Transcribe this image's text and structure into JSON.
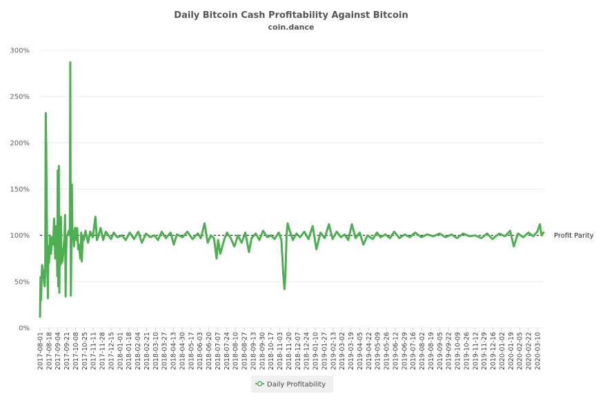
{
  "chart_data": {
    "type": "line",
    "title": "Daily Bitcoin Cash Profitability Against Bitcoin",
    "subtitle": "coin.dance",
    "y_unit": "%",
    "ylim": [
      0,
      300
    ],
    "yticks": [
      0,
      50,
      100,
      150,
      200,
      250,
      300
    ],
    "ytick_labels": [
      "0%",
      "50%",
      "100%",
      "150%",
      "200%",
      "250%",
      "300%"
    ],
    "xlim": [
      "2017-08-01",
      "2020-03-22"
    ],
    "xtick_labels": [
      "2017-08-01",
      "2017-08-18",
      "2017-09-04",
      "2017-09-21",
      "2017-10-08",
      "2017-10-25",
      "2017-11-11",
      "2017-11-28",
      "2017-12-15",
      "2018-01-01",
      "2018-01-18",
      "2018-02-04",
      "2018-02-21",
      "2018-03-10",
      "2018-03-27",
      "2018-04-13",
      "2018-04-30",
      "2018-05-17",
      "2018-06-03",
      "2018-06-20",
      "2018-07-07",
      "2018-07-24",
      "2018-08-10",
      "2018-08-27",
      "2018-09-13",
      "2018-09-30",
      "2018-10-17",
      "2018-11-03",
      "2018-11-20",
      "2018-12-07",
      "2018-12-24",
      "2019-01-10",
      "2019-01-27",
      "2019-02-13",
      "2019-03-02",
      "2019-03-19",
      "2019-04-05",
      "2019-04-22",
      "2019-05-09",
      "2019-05-26",
      "2019-06-12",
      "2019-06-29",
      "2019-07-16",
      "2019-08-02",
      "2019-08-19",
      "2019-09-05",
      "2019-09-22",
      "2019-10-09",
      "2019-10-26",
      "2019-11-12",
      "2019-11-29",
      "2019-12-16",
      "2020-01-02",
      "2020-01-19",
      "2020-02-05",
      "2020-02-22",
      "2020-03-10"
    ],
    "grid": true,
    "legend_placement": "bottom-center",
    "line_color": "#4caf50",
    "reference_line": {
      "value": 100,
      "label": "Profit Parity",
      "color": "#000000",
      "style": "dashed"
    },
    "series": [
      {
        "name": "Daily Profitability",
        "color": "#4caf50",
        "points": [
          [
            "2017-08-01",
            12
          ],
          [
            "2017-08-02",
            55
          ],
          [
            "2017-08-03",
            30
          ],
          [
            "2017-08-04",
            52
          ],
          [
            "2017-08-05",
            68
          ],
          [
            "2017-08-07",
            62
          ],
          [
            "2017-08-09",
            48
          ],
          [
            "2017-08-10",
            45
          ],
          [
            "2017-08-11",
            60
          ],
          [
            "2017-08-12",
            232
          ],
          [
            "2017-08-13",
            190
          ],
          [
            "2017-08-14",
            125
          ],
          [
            "2017-08-15",
            70
          ],
          [
            "2017-08-16",
            32
          ],
          [
            "2017-08-17",
            88
          ],
          [
            "2017-08-18",
            70
          ],
          [
            "2017-08-19",
            78
          ],
          [
            "2017-08-20",
            100
          ],
          [
            "2017-08-21",
            88
          ],
          [
            "2017-08-22",
            80
          ],
          [
            "2017-08-24",
            98
          ],
          [
            "2017-08-26",
            90
          ],
          [
            "2017-08-28",
            118
          ],
          [
            "2017-08-29",
            100
          ],
          [
            "2017-08-30",
            75
          ],
          [
            "2017-08-31",
            110
          ],
          [
            "2017-09-01",
            95
          ],
          [
            "2017-09-02",
            105
          ],
          [
            "2017-09-03",
            56
          ],
          [
            "2017-09-04",
            170
          ],
          [
            "2017-09-05",
            45
          ],
          [
            "2017-09-06",
            175
          ],
          [
            "2017-09-07",
            38
          ],
          [
            "2017-09-08",
            100
          ],
          [
            "2017-09-09",
            68
          ],
          [
            "2017-09-10",
            120
          ],
          [
            "2017-09-11",
            70
          ],
          [
            "2017-09-12",
            85
          ],
          [
            "2017-09-13",
            72
          ],
          [
            "2017-09-15",
            85
          ],
          [
            "2017-09-17",
            100
          ],
          [
            "2017-09-18",
            122
          ],
          [
            "2017-09-19",
            34
          ],
          [
            "2017-09-20",
            80
          ],
          [
            "2017-09-21",
            100
          ],
          [
            "2017-09-23",
            100
          ],
          [
            "2017-09-25",
            105
          ],
          [
            "2017-09-27",
            100
          ],
          [
            "2017-09-28",
            287
          ],
          [
            "2017-09-29",
            35
          ],
          [
            "2017-09-30",
            80
          ],
          [
            "2017-10-01",
            155
          ],
          [
            "2017-10-02",
            100
          ],
          [
            "2017-10-03",
            105
          ],
          [
            "2017-10-05",
            88
          ],
          [
            "2017-10-07",
            108
          ],
          [
            "2017-10-09",
            95
          ],
          [
            "2017-10-11",
            108
          ],
          [
            "2017-10-13",
            85
          ],
          [
            "2017-10-15",
            90
          ],
          [
            "2017-10-17",
            75
          ],
          [
            "2017-10-19",
            103
          ],
          [
            "2017-10-20",
            72
          ],
          [
            "2017-10-22",
            100
          ],
          [
            "2017-10-24",
            95
          ],
          [
            "2017-10-27",
            105
          ],
          [
            "2017-11-01",
            92
          ],
          [
            "2017-11-05",
            104
          ],
          [
            "2017-11-10",
            98
          ],
          [
            "2017-11-15",
            120
          ],
          [
            "2017-11-18",
            95
          ],
          [
            "2017-11-22",
            102
          ],
          [
            "2017-11-25",
            108
          ],
          [
            "2017-11-30",
            95
          ],
          [
            "2017-12-05",
            104
          ],
          [
            "2017-12-10",
            100
          ],
          [
            "2017-12-15",
            96
          ],
          [
            "2017-12-20",
            103
          ],
          [
            "2017-12-27",
            98
          ],
          [
            "2018-01-05",
            100
          ],
          [
            "2018-01-12",
            95
          ],
          [
            "2018-01-20",
            103
          ],
          [
            "2018-01-28",
            96
          ],
          [
            "2018-02-05",
            104
          ],
          [
            "2018-02-12",
            92
          ],
          [
            "2018-02-20",
            102
          ],
          [
            "2018-02-28",
            98
          ],
          [
            "2018-03-08",
            100
          ],
          [
            "2018-03-15",
            95
          ],
          [
            "2018-03-22",
            104
          ],
          [
            "2018-03-30",
            97
          ],
          [
            "2018-04-08",
            103
          ],
          [
            "2018-04-14",
            90
          ],
          [
            "2018-04-20",
            101
          ],
          [
            "2018-05-01",
            98
          ],
          [
            "2018-05-10",
            104
          ],
          [
            "2018-05-20",
            96
          ],
          [
            "2018-05-30",
            102
          ],
          [
            "2018-06-05",
            97
          ],
          [
            "2018-06-12",
            113
          ],
          [
            "2018-06-18",
            92
          ],
          [
            "2018-06-24",
            100
          ],
          [
            "2018-06-30",
            97
          ],
          [
            "2018-07-05",
            75
          ],
          [
            "2018-07-08",
            95
          ],
          [
            "2018-07-12",
            80
          ],
          [
            "2018-07-16",
            88
          ],
          [
            "2018-07-20",
            96
          ],
          [
            "2018-07-25",
            103
          ],
          [
            "2018-08-01",
            97
          ],
          [
            "2018-08-08",
            88
          ],
          [
            "2018-08-15",
            100
          ],
          [
            "2018-08-22",
            92
          ],
          [
            "2018-08-29",
            103
          ],
          [
            "2018-09-05",
            82
          ],
          [
            "2018-09-10",
            97
          ],
          [
            "2018-09-18",
            102
          ],
          [
            "2018-09-25",
            95
          ],
          [
            "2018-10-02",
            105
          ],
          [
            "2018-10-10",
            98
          ],
          [
            "2018-10-17",
            100
          ],
          [
            "2018-10-24",
            96
          ],
          [
            "2018-11-01",
            103
          ],
          [
            "2018-11-06",
            95
          ],
          [
            "2018-11-10",
            55
          ],
          [
            "2018-11-12",
            42
          ],
          [
            "2018-11-14",
            60
          ],
          [
            "2018-11-16",
            100
          ],
          [
            "2018-11-18",
            113
          ],
          [
            "2018-11-22",
            105
          ],
          [
            "2018-11-28",
            95
          ],
          [
            "2018-12-05",
            102
          ],
          [
            "2018-12-12",
            98
          ],
          [
            "2018-12-20",
            104
          ],
          [
            "2018-12-28",
            96
          ],
          [
            "2019-01-05",
            110
          ],
          [
            "2019-01-12",
            85
          ],
          [
            "2019-01-20",
            103
          ],
          [
            "2019-01-28",
            97
          ],
          [
            "2019-02-05",
            112
          ],
          [
            "2019-02-12",
            96
          ],
          [
            "2019-02-20",
            104
          ],
          [
            "2019-02-28",
            98
          ],
          [
            "2019-03-07",
            101
          ],
          [
            "2019-03-14",
            95
          ],
          [
            "2019-03-21",
            112
          ],
          [
            "2019-03-28",
            97
          ],
          [
            "2019-04-05",
            103
          ],
          [
            "2019-04-12",
            90
          ],
          [
            "2019-04-20",
            100
          ],
          [
            "2019-04-30",
            96
          ],
          [
            "2019-05-08",
            103
          ],
          [
            "2019-05-15",
            98
          ],
          [
            "2019-05-24",
            101
          ],
          [
            "2019-06-02",
            97
          ],
          [
            "2019-06-10",
            104
          ],
          [
            "2019-06-20",
            97
          ],
          [
            "2019-06-30",
            101
          ],
          [
            "2019-07-10",
            98
          ],
          [
            "2019-07-20",
            103
          ],
          [
            "2019-08-01",
            98
          ],
          [
            "2019-08-12",
            101
          ],
          [
            "2019-08-24",
            99
          ],
          [
            "2019-09-05",
            102
          ],
          [
            "2019-09-16",
            98
          ],
          [
            "2019-09-28",
            101
          ],
          [
            "2019-10-08",
            97
          ],
          [
            "2019-10-20",
            102
          ],
          [
            "2019-11-01",
            99
          ],
          [
            "2019-11-12",
            100
          ],
          [
            "2019-11-24",
            97
          ],
          [
            "2019-12-05",
            102
          ],
          [
            "2019-12-15",
            96
          ],
          [
            "2019-12-28",
            102
          ],
          [
            "2020-01-08",
            99
          ],
          [
            "2020-01-18",
            105
          ],
          [
            "2020-01-25",
            88
          ],
          [
            "2020-02-02",
            102
          ],
          [
            "2020-02-12",
            98
          ],
          [
            "2020-02-22",
            103
          ],
          [
            "2020-03-02",
            99
          ],
          [
            "2020-03-10",
            104
          ],
          [
            "2020-03-15",
            112
          ],
          [
            "2020-03-18",
            100
          ],
          [
            "2020-03-22",
            103
          ]
        ]
      }
    ]
  }
}
